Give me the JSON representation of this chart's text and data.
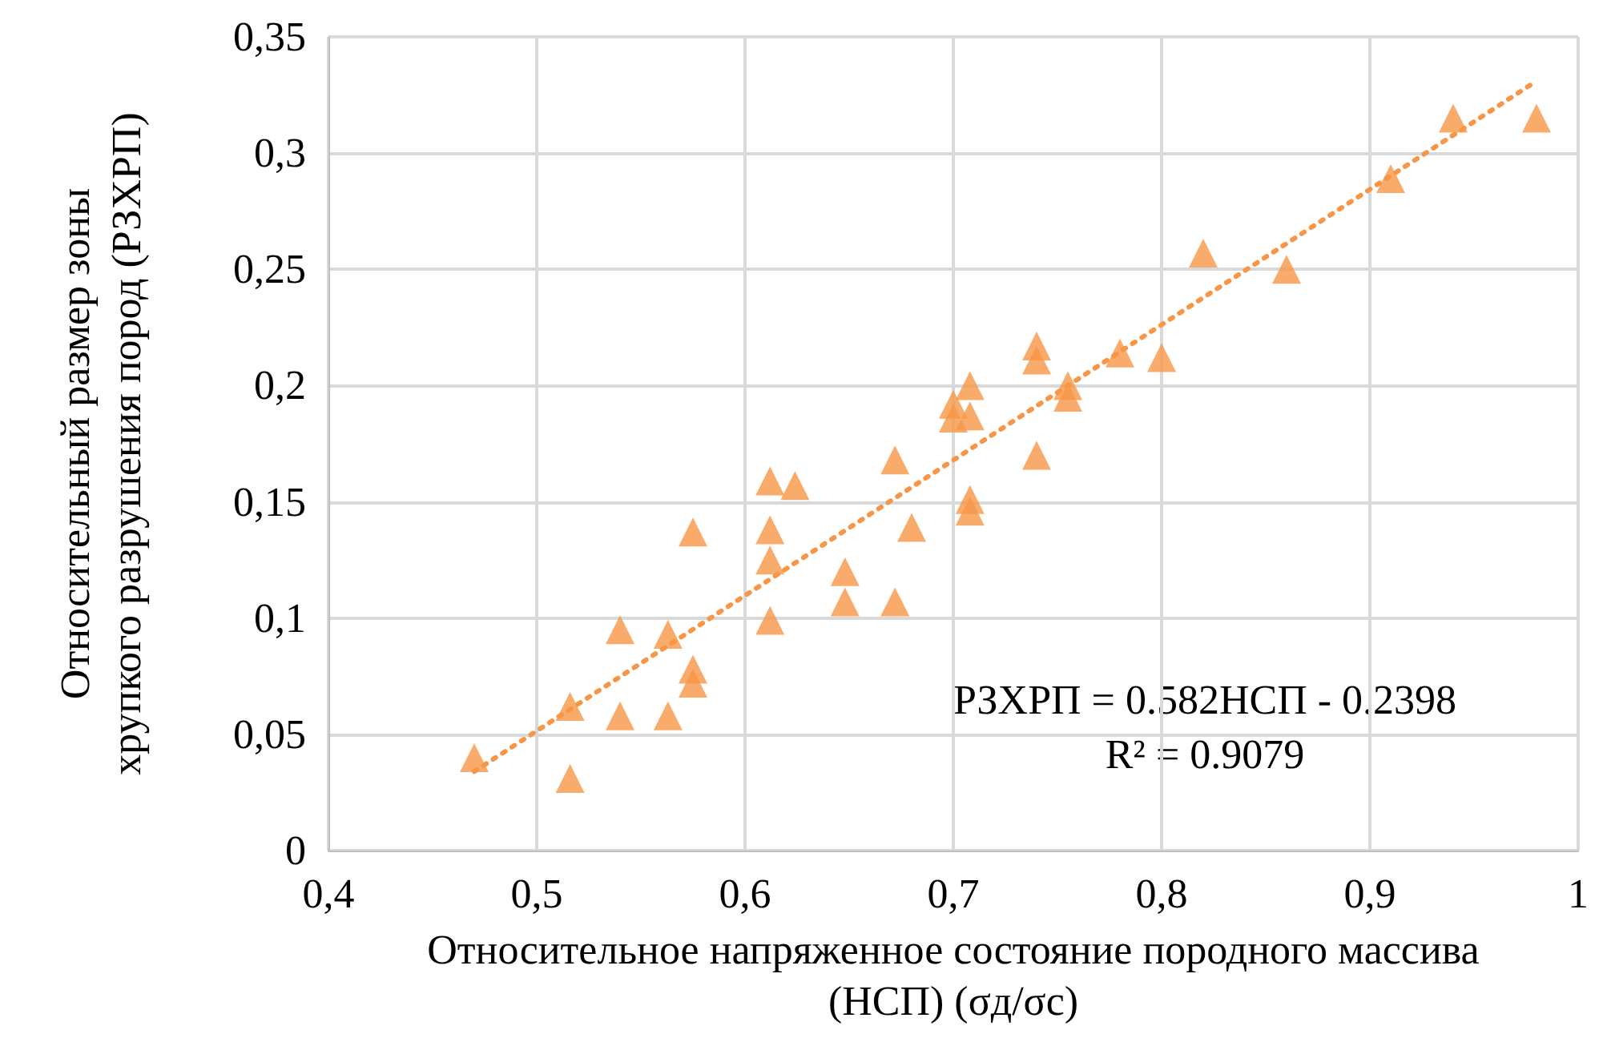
{
  "chart_data": {
    "type": "scatter",
    "xlabel": "Относительное напряженное состояние породного массива (НСП) (σд/σс)",
    "ylabel": "Относительный размер зоны хрупкого разрушения пород (РЗХРП)",
    "series": [
      {
        "color": "#f79646",
        "marker": "triangle",
        "x": [
          0.47,
          0.516,
          0.516,
          0.54,
          0.54,
          0.563,
          0.563,
          0.575,
          0.575,
          0.575,
          0.612,
          0.612,
          0.612,
          0.612,
          0.624,
          0.648,
          0.648,
          0.672,
          0.672,
          0.68,
          0.7,
          0.7,
          0.708,
          0.708,
          0.708,
          0.708,
          0.74,
          0.74,
          0.74,
          0.755,
          0.755,
          0.78,
          0.8,
          0.82,
          0.86,
          0.91,
          0.94,
          0.98
        ],
        "values": [
          0.04,
          0.062,
          0.031,
          0.095,
          0.058,
          0.093,
          0.058,
          0.137,
          0.078,
          0.072,
          0.159,
          0.138,
          0.125,
          0.099,
          0.157,
          0.12,
          0.107,
          0.168,
          0.107,
          0.139,
          0.192,
          0.186,
          0.2,
          0.187,
          0.151,
          0.146,
          0.217,
          0.211,
          0.17,
          0.2,
          0.195,
          0.214,
          0.212,
          0.257,
          0.25,
          0.289,
          0.315,
          0.315
        ]
      },
      {
        "type": "line",
        "color": "#f79646",
        "line_style": "dotted",
        "marker": "none",
        "x": [
          0.47,
          0.98
        ],
        "values": [
          0.034,
          0.331
        ]
      }
    ],
    "xlim": [
      0.4,
      1
    ],
    "xticks": [
      {
        "value": 0.4,
        "label": "0,4"
      },
      {
        "value": 0.5,
        "label": "0,5"
      },
      {
        "value": 0.6,
        "label": "0,6"
      },
      {
        "value": 0.7,
        "label": "0,7"
      },
      {
        "value": 0.8,
        "label": "0,8"
      },
      {
        "value": 0.9,
        "label": "0,9"
      },
      1
    ],
    "ylim": [
      0,
      0.35
    ],
    "yticks": [
      0,
      {
        "value": 0.05,
        "label": "0,05"
      },
      {
        "value": 0.1,
        "label": "0,1"
      },
      {
        "value": 0.15,
        "label": "0,15"
      },
      {
        "value": 0.2,
        "label": "0,2"
      },
      {
        "value": 0.25,
        "label": "0,25"
      },
      {
        "value": 0.3,
        "label": "0,3"
      },
      {
        "value": 0.35,
        "label": "0,35"
      }
    ],
    "grid": true,
    "annotations": [
      "РЗХРП = 0.582НСП - 0.2398",
      "R² = 0.9079"
    ]
  }
}
